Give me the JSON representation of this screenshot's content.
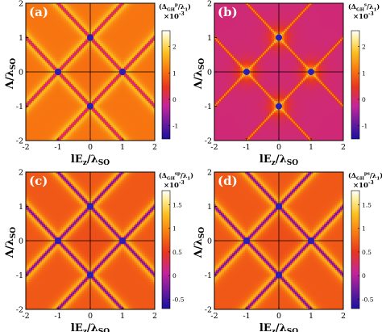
{
  "chart_data": [
    {
      "type": "heatmap",
      "panel_label": "(a)",
      "xlabel_main": "lE",
      "xlabel_sub": "z",
      "xlabel_rest": "/λ",
      "xlabel_rest_sub": "SO",
      "ylabel": "Λ/λ",
      "ylabel_sub": "SO",
      "colorbar_label": "(Δ",
      "colorbar_label_sub": "GH",
      "colorbar_label_sup": "p",
      "colorbar_label_rest": "/λ",
      "colorbar_label_rest_sub": "1",
      "colorbar_label_end": ")",
      "colorbar_exponent": "×10",
      "colorbar_exponent_power": "-3",
      "colorbar_range": [
        -1.5,
        2.6
      ],
      "colorbar_ticks": [
        "2",
        "1",
        "0",
        "-1"
      ],
      "xticks": [
        "-2",
        "-1",
        "0",
        "1",
        "2"
      ],
      "yticks": [
        "2",
        "1",
        "0",
        "-1",
        "-2"
      ],
      "xlim": [
        -2,
        2
      ],
      "ylim": [
        -2,
        2
      ],
      "pattern": "dirac-lines",
      "background_value": 0.8,
      "stripe_value": -0.3,
      "peak_value": 2.0,
      "dirac_points": [
        [
          0,
          1
        ],
        [
          0,
          -1
        ],
        [
          -1,
          0
        ],
        [
          1,
          0
        ]
      ]
    },
    {
      "type": "heatmap",
      "panel_label": "(b)",
      "xlabel_main": "lE",
      "xlabel_sub": "z",
      "xlabel_rest": "/λ",
      "xlabel_rest_sub": "SO",
      "ylabel": "Λ/λ",
      "ylabel_sub": "SO",
      "colorbar_label": "(Δ",
      "colorbar_label_sub": "GH",
      "colorbar_label_sup": "s",
      "colorbar_label_rest": "/λ",
      "colorbar_label_rest_sub": "1",
      "colorbar_label_end": ")",
      "colorbar_exponent": "×10",
      "colorbar_exponent_power": "-3",
      "colorbar_range": [
        -1.5,
        2.6
      ],
      "colorbar_ticks": [
        "2",
        "1",
        "0",
        "-1"
      ],
      "xticks": [
        "-2",
        "-1",
        "0",
        "1",
        "2"
      ],
      "yticks": [
        "2",
        "1",
        "0",
        "-1",
        "-2"
      ],
      "xlim": [
        -2,
        2
      ],
      "ylim": [
        -2,
        2
      ],
      "pattern": "dirac-lines-inner",
      "background_value": -0.15,
      "stripe_value": 1.0,
      "peak_value": 2.2,
      "dirac_points": [
        [
          0,
          1
        ],
        [
          0,
          -1
        ],
        [
          -1,
          0
        ],
        [
          1,
          0
        ]
      ]
    },
    {
      "type": "heatmap",
      "panel_label": "(c)",
      "xlabel_main": "lE",
      "xlabel_sub": "z",
      "xlabel_rest": "/λ",
      "xlabel_rest_sub": "SO",
      "ylabel": "Λ/λ",
      "ylabel_sub": "SO",
      "colorbar_label": "(Δ",
      "colorbar_label_sub": "GH",
      "colorbar_label_sup": "sp",
      "colorbar_label_rest": "/λ",
      "colorbar_label_rest_sub": "1",
      "colorbar_label_end": ")",
      "colorbar_exponent": "×10",
      "colorbar_exponent_power": "-3",
      "colorbar_range": [
        -0.7,
        1.8
      ],
      "colorbar_ticks": [
        "1.5",
        "1",
        "0.5",
        "0",
        "-0.5"
      ],
      "xticks": [
        "-2",
        "-1",
        "0",
        "1",
        "2"
      ],
      "yticks": [
        "2",
        "1",
        "0",
        "-1",
        "-2"
      ],
      "xlim": [
        -2,
        2
      ],
      "ylim": [
        -2,
        2
      ],
      "pattern": "dirac-lines",
      "background_value": 0.55,
      "stripe_value": -0.35,
      "peak_value": 1.5,
      "dirac_points": [
        [
          0,
          1
        ],
        [
          0,
          -1
        ],
        [
          -1,
          0
        ],
        [
          1,
          0
        ]
      ]
    },
    {
      "type": "heatmap",
      "panel_label": "(d)",
      "xlabel_main": "lE",
      "xlabel_sub": "z",
      "xlabel_rest": "/λ",
      "xlabel_rest_sub": "SO",
      "ylabel": "Λ/λ",
      "ylabel_sub": "SO",
      "colorbar_label": "(Δ",
      "colorbar_label_sub": "GH",
      "colorbar_label_sup": "ps",
      "colorbar_label_rest": "/λ",
      "colorbar_label_rest_sub": "1",
      "colorbar_label_end": ")",
      "colorbar_exponent": "×10",
      "colorbar_exponent_power": "-3",
      "colorbar_range": [
        -0.7,
        1.8
      ],
      "colorbar_ticks": [
        "1.5",
        "1",
        "0.5",
        "0",
        "-0.5"
      ],
      "xticks": [
        "-2",
        "-1",
        "0",
        "1",
        "2"
      ],
      "yticks": [
        "2",
        "1",
        "0",
        "-1",
        "-2"
      ],
      "xlim": [
        -2,
        2
      ],
      "ylim": [
        -2,
        2
      ],
      "pattern": "dirac-lines",
      "background_value": 0.55,
      "stripe_value": -0.35,
      "peak_value": 1.5,
      "dirac_points": [
        [
          0,
          1
        ],
        [
          0,
          -1
        ],
        [
          -1,
          0
        ],
        [
          1,
          0
        ]
      ]
    }
  ],
  "colormap": [
    "#1a10a0",
    "#5a1a9e",
    "#c4249c",
    "#e8361e",
    "#f87a10",
    "#fcc020",
    "#fff0a0",
    "#ffffff"
  ]
}
